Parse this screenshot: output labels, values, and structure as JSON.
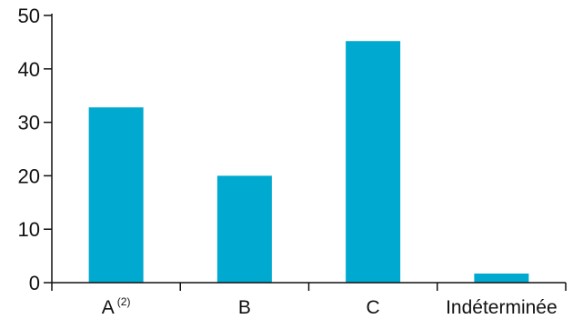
{
  "chart_data": {
    "type": "bar",
    "title": "",
    "xlabel": "",
    "ylabel": "",
    "categories": [
      "A",
      "B",
      "C",
      "Indéterminée"
    ],
    "category_superscripts": [
      "(2)",
      "",
      "",
      ""
    ],
    "values": [
      32.8,
      20,
      45.2,
      1.7
    ],
    "ylim": [
      0,
      50
    ],
    "yticks": [
      0,
      10,
      20,
      30,
      40,
      50
    ],
    "grid": false,
    "legend": "none",
    "bar_color": "#00a9cf",
    "axis_color": "#111111"
  }
}
